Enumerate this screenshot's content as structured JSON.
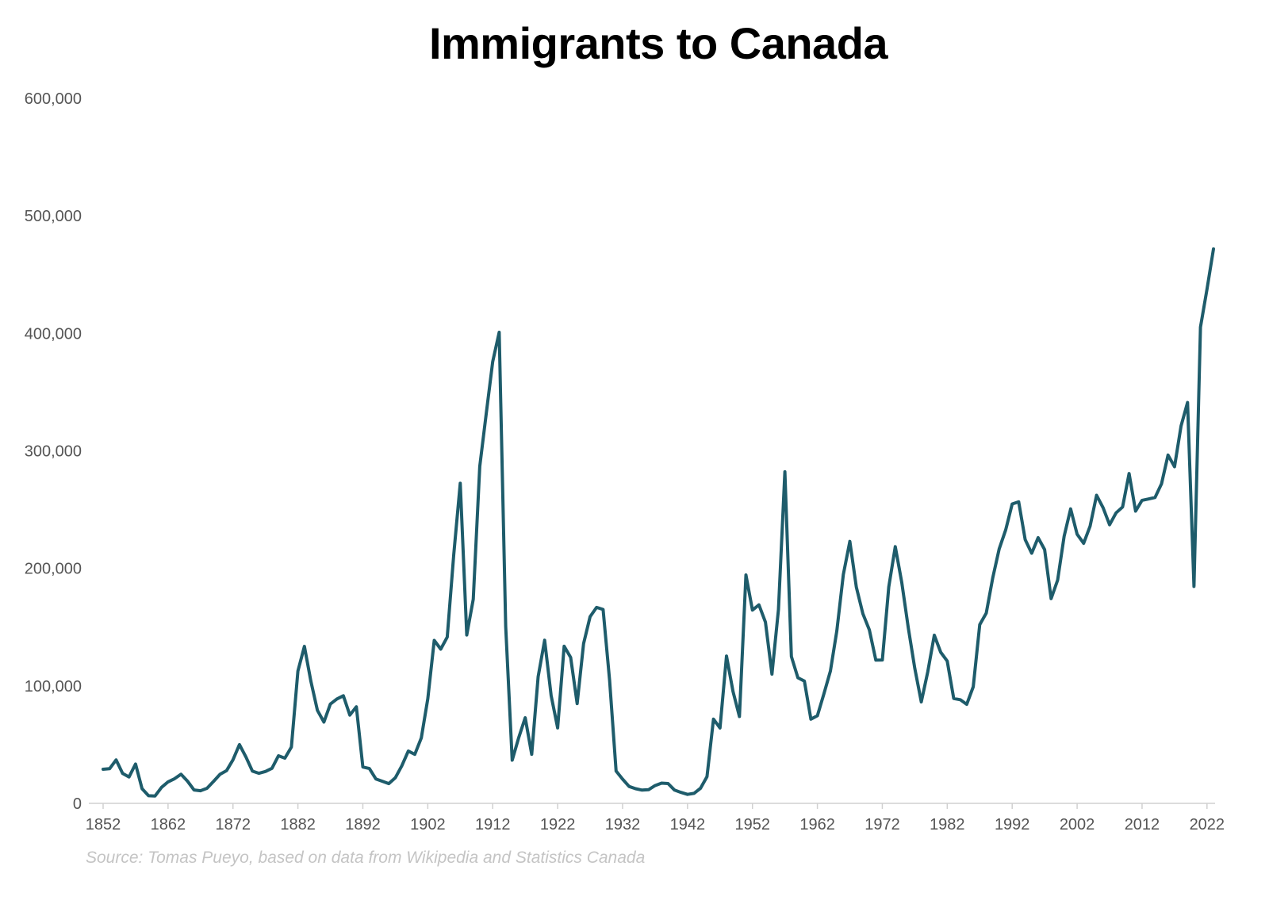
{
  "page_title": "Immigrants to Canada",
  "source": "Source: Tomas Pueyo, based on data from Wikipedia and Statistics Canada",
  "colors": {
    "line": "#1e5c6b",
    "axis": "#d0d0d0",
    "tick_text": "#555555",
    "title": "#000000",
    "source": "#c4c4c4"
  },
  "chart_data": {
    "type": "line",
    "title": "Immigrants to Canada",
    "xlabel": "",
    "ylabel": "",
    "xlim": [
      1852,
      2023
    ],
    "ylim": [
      0,
      600000
    ],
    "x_ticks": [
      1852,
      1862,
      1872,
      1882,
      1892,
      1902,
      1912,
      1922,
      1932,
      1942,
      1952,
      1962,
      1972,
      1982,
      1992,
      2002,
      2012,
      2022
    ],
    "x_tick_labels": [
      "1852",
      "1862",
      "1872",
      "1882",
      "1892",
      "1902",
      "1912",
      "1922",
      "1932",
      "1942",
      "1952",
      "1962",
      "1972",
      "1982",
      "1992",
      "2002",
      "2012",
      "2022"
    ],
    "y_ticks": [
      0,
      100000,
      200000,
      300000,
      400000,
      500000,
      600000
    ],
    "y_tick_labels": [
      "0",
      "100,000",
      "200,000",
      "300,000",
      "400,000",
      "500,000",
      "600,000"
    ],
    "grid": false,
    "legend": "none",
    "series": [
      {
        "x": [
          1852,
          1853,
          1854,
          1855,
          1856,
          1857,
          1858,
          1859,
          1860,
          1861,
          1862,
          1863,
          1864,
          1865,
          1866,
          1867,
          1868,
          1869,
          1870,
          1871,
          1872,
          1873,
          1874,
          1875,
          1876,
          1877,
          1878,
          1879,
          1880,
          1881,
          1882,
          1883,
          1884,
          1885,
          1886,
          1887,
          1888,
          1889,
          1890,
          1891,
          1892,
          1893,
          1894,
          1895,
          1896,
          1897,
          1898,
          1899,
          1900,
          1901,
          1902,
          1903,
          1904,
          1905,
          1906,
          1907,
          1908,
          1909,
          1910,
          1911,
          1912,
          1913,
          1914,
          1915,
          1916,
          1917,
          1918,
          1919,
          1920,
          1921,
          1922,
          1923,
          1924,
          1925,
          1926,
          1927,
          1928,
          1929,
          1930,
          1931,
          1932,
          1933,
          1934,
          1935,
          1936,
          1937,
          1938,
          1939,
          1940,
          1941,
          1942,
          1943,
          1944,
          1945,
          1946,
          1947,
          1948,
          1949,
          1950,
          1951,
          1952,
          1953,
          1954,
          1955,
          1956,
          1957,
          1958,
          1959,
          1960,
          1961,
          1962,
          1963,
          1964,
          1965,
          1966,
          1967,
          1968,
          1969,
          1970,
          1971,
          1972,
          1973,
          1974,
          1975,
          1976,
          1977,
          1978,
          1979,
          1980,
          1981,
          1982,
          1983,
          1984,
          1985,
          1986,
          1987,
          1988,
          1989,
          1990,
          1991,
          1992,
          1993,
          1994,
          1995,
          1996,
          1997,
          1998,
          1999,
          2000,
          2001,
          2002,
          2003,
          2004,
          2005,
          2006,
          2007,
          2008,
          2009,
          2010,
          2011,
          2012,
          2013,
          2014,
          2015,
          2016,
          2017,
          2018,
          2019,
          2020,
          2021,
          2022,
          2023
        ],
        "y": [
          29000,
          29500,
          37000,
          25500,
          22500,
          33500,
          12500,
          6500,
          6300,
          13600,
          18300,
          21000,
          24800,
          18900,
          11400,
          10700,
          12800,
          18600,
          24700,
          27800,
          37000,
          50000,
          39400,
          27400,
          25600,
          27100,
          29800,
          40500,
          38500,
          47900,
          112500,
          133600,
          103800,
          79200,
          69200,
          84500,
          88800,
          91600,
          75100,
          82200,
          30900,
          29600,
          20800,
          18800,
          16800,
          21700,
          31900,
          44500,
          41700,
          55700,
          89100,
          138700,
          131300,
          141500,
          211700,
          272400,
          143300,
          173700,
          286800,
          331300,
          375800,
          400900,
          150500,
          36700,
          55900,
          72900,
          41800,
          107700,
          138800,
          91700,
          64200,
          133700,
          124200,
          84900,
          135900,
          158900,
          166800,
          165000,
          104800,
          27500,
          20600,
          14400,
          12500,
          11300,
          11600,
          15100,
          17200,
          16900,
          11300,
          9300,
          7600,
          8500,
          12800,
          22700,
          71700,
          64100,
          125400,
          95200,
          73900,
          194400,
          164500,
          168900,
          154200,
          110000,
          164900,
          282200,
          125000,
          106900,
          104100,
          71700,
          74600,
          93200,
          112600,
          146800,
          194700,
          222900,
          184000,
          161500,
          147700,
          121900,
          122000,
          184200,
          218500,
          187900,
          149400,
          114900,
          86300,
          112100,
          143100,
          128600,
          121100,
          89200,
          88200,
          84300,
          99200,
          152100,
          161900,
          191600,
          216500,
          232700,
          254800,
          256600,
          224400,
          212900,
          226100,
          216000,
          174200,
          190000,
          227300,
          250600,
          229000,
          221300,
          235800,
          262200,
          251600,
          237100,
          247200,
          252200,
          280700,
          248700,
          257900,
          259000,
          260300,
          272000,
          296400,
          286500,
          321100,
          341200,
          184600,
          405300,
          437500,
          471800
        ]
      }
    ]
  }
}
